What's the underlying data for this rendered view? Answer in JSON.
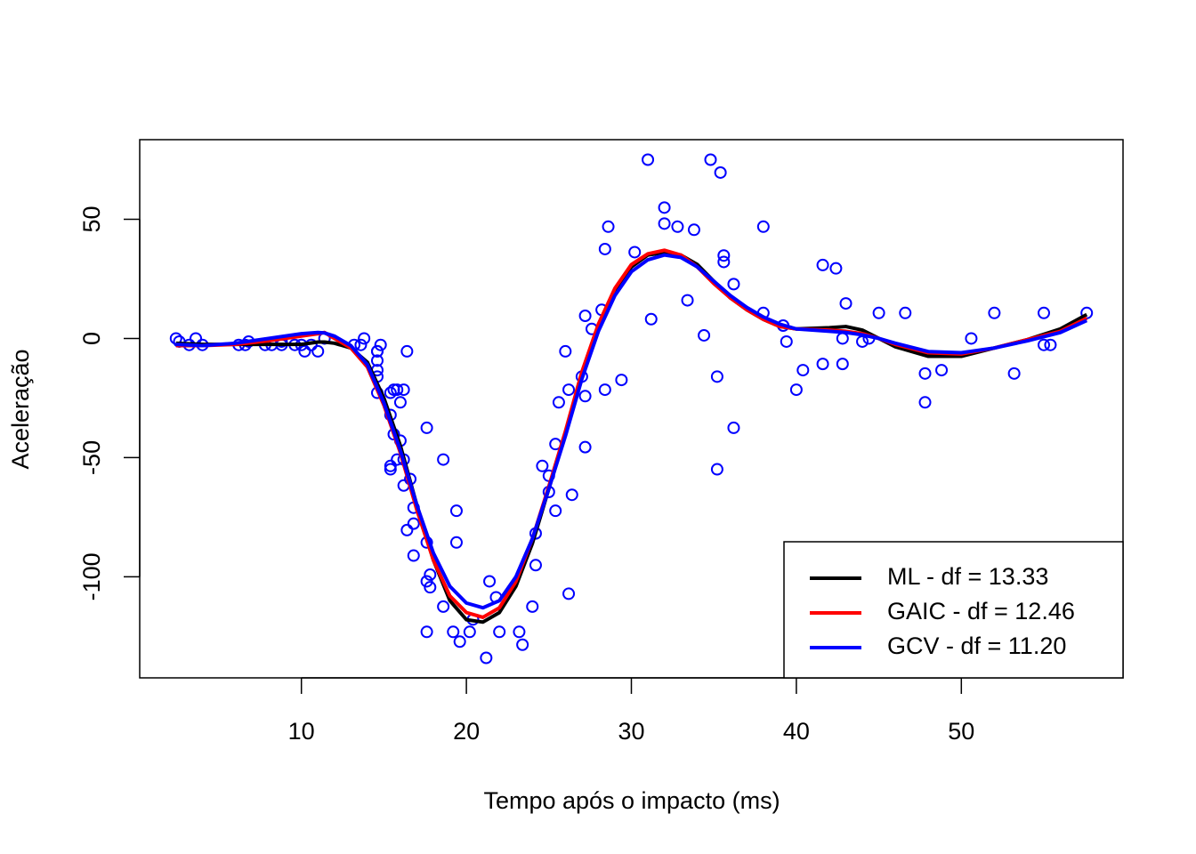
{
  "chart_data": {
    "type": "scatter",
    "x_label": "Tempo após o impacto (ms)",
    "y_label": "Aceleração",
    "xlim": [
      0.2,
      59.8
    ],
    "ylim": [
      -142.4,
      83.4
    ],
    "xticks": [
      10,
      20,
      30,
      40,
      50
    ],
    "yticks": [
      -100,
      -50,
      0,
      50
    ],
    "legend": "bottom-right",
    "points": {
      "color": "#0000ff",
      "x": [
        2.4,
        2.6,
        3.2,
        3.6,
        4.0,
        6.2,
        6.6,
        6.8,
        7.8,
        8.2,
        8.8,
        8.8,
        9.6,
        10.0,
        10.2,
        10.6,
        11.0,
        11.4,
        13.2,
        13.6,
        13.8,
        14.6,
        14.6,
        14.6,
        14.6,
        14.6,
        14.6,
        14.8,
        15.4,
        15.4,
        15.4,
        15.4,
        15.6,
        15.6,
        15.8,
        15.8,
        16.0,
        16.0,
        16.2,
        16.2,
        16.2,
        16.4,
        16.4,
        16.6,
        16.8,
        16.8,
        16.8,
        17.6,
        17.6,
        17.6,
        17.6,
        17.8,
        17.8,
        18.6,
        18.6,
        19.2,
        19.4,
        19.4,
        19.6,
        20.2,
        20.4,
        21.2,
        21.4,
        21.8,
        22.0,
        23.2,
        23.4,
        24.0,
        24.2,
        24.2,
        24.6,
        25.0,
        25.0,
        25.4,
        25.4,
        25.6,
        26.0,
        26.2,
        26.2,
        26.4,
        27.0,
        27.2,
        27.2,
        27.2,
        27.6,
        28.2,
        28.4,
        28.4,
        28.6,
        29.4,
        30.2,
        31.0,
        31.2,
        32.0,
        32.0,
        32.8,
        33.4,
        33.8,
        34.4,
        34.8,
        35.2,
        35.2,
        35.4,
        35.6,
        35.6,
        36.2,
        36.2,
        38.0,
        38.0,
        39.2,
        39.4,
        40.0,
        40.4,
        41.6,
        41.6,
        42.4,
        42.8,
        42.8,
        43.0,
        44.0,
        44.4,
        45.0,
        46.6,
        47.8,
        47.8,
        48.8,
        50.6,
        52.0,
        53.2,
        55.0,
        55.0,
        55.4,
        57.6
      ],
      "y": [
        0.0,
        -1.3,
        -2.7,
        0.0,
        -2.7,
        -2.7,
        -2.7,
        -1.3,
        -2.7,
        -2.7,
        -1.3,
        -2.7,
        -2.7,
        -2.7,
        -5.4,
        -2.7,
        -5.4,
        0.0,
        -2.7,
        -2.7,
        0.0,
        -13.3,
        -5.4,
        -5.4,
        -9.3,
        -16.0,
        -22.8,
        -2.7,
        -22.8,
        -32.1,
        -53.5,
        -54.9,
        -40.2,
        -21.5,
        -21.5,
        -50.8,
        -42.9,
        -26.8,
        -21.5,
        -50.8,
        -61.7,
        -5.4,
        -80.4,
        -59.0,
        -71.0,
        -91.1,
        -77.7,
        -37.5,
        -85.6,
        -123.1,
        -101.9,
        -99.1,
        -104.4,
        -112.5,
        -50.8,
        -123.1,
        -85.6,
        -72.3,
        -127.2,
        -123.1,
        -117.9,
        -134.0,
        -101.9,
        -108.6,
        -123.1,
        -123.1,
        -128.5,
        -112.5,
        -95.1,
        -81.8,
        -53.5,
        -64.4,
        -57.6,
        -72.3,
        -44.3,
        -26.8,
        -5.4,
        -107.1,
        -21.5,
        -65.6,
        -16.0,
        -45.6,
        -24.2,
        9.5,
        4.0,
        12.0,
        -21.5,
        37.5,
        46.9,
        -17.4,
        36.2,
        75.0,
        8.1,
        54.9,
        48.2,
        46.9,
        16.0,
        45.6,
        1.3,
        75.0,
        -16.0,
        -54.9,
        69.6,
        34.8,
        32.1,
        -37.5,
        22.8,
        46.9,
        10.7,
        5.4,
        -1.3,
        -21.5,
        -13.3,
        30.8,
        -10.7,
        29.4,
        0.0,
        -10.7,
        14.7,
        -1.3,
        0.0,
        10.7,
        10.7,
        -26.8,
        -14.7,
        -13.3,
        0.0,
        10.7,
        -14.7,
        -2.7,
        10.7,
        -2.7,
        10.7
      ]
    },
    "smooth_x": [
      2.4,
      4,
      6,
      8,
      10,
      11,
      11.4,
      12,
      13,
      14,
      15,
      16,
      17,
      18,
      19,
      20,
      21,
      22,
      23,
      24,
      25,
      26,
      27,
      28,
      29,
      30,
      31,
      32,
      33,
      34,
      35,
      36,
      37,
      38,
      39,
      40,
      42,
      43,
      44,
      45,
      46,
      48,
      50,
      52,
      54,
      56,
      57.6
    ],
    "series": [
      {
        "name": "ML - df = 13.33",
        "color": "#000000",
        "values": [
          -2,
          -2.5,
          -2.5,
          -2.5,
          -2.5,
          -1.5,
          -1.5,
          -2,
          -4,
          -10,
          -25,
          -45,
          -70,
          -93,
          -110,
          -118,
          -119,
          -115,
          -104,
          -86,
          -63,
          -40,
          -15,
          5,
          20,
          30,
          35,
          36,
          35,
          31,
          24,
          17,
          12,
          8,
          5,
          4,
          4.5,
          5,
          3.5,
          0,
          -3.5,
          -7.5,
          -7.5,
          -4,
          -0.5,
          4,
          10
        ]
      },
      {
        "name": "GAIC - df = 12.46",
        "color": "#ff0000",
        "values": [
          -3,
          -3,
          -2.5,
          -1,
          1,
          2,
          2.5,
          0,
          -4,
          -12,
          -28,
          -48,
          -72,
          -93,
          -108,
          -115,
          -117,
          -113,
          -102,
          -84,
          -62,
          -39,
          -14,
          6,
          21,
          31,
          35.5,
          37,
          35,
          30,
          23,
          17,
          12,
          8,
          5,
          4,
          3.5,
          3,
          2,
          0,
          -2.5,
          -6,
          -6.5,
          -4,
          -0.5,
          3,
          8.5
        ]
      },
      {
        "name": "GCV - df = 11.20",
        "color": "#0000ff",
        "values": [
          -2.5,
          -3,
          -2,
          0,
          2,
          2.5,
          2.3,
          1,
          -3,
          -11,
          -27,
          -47,
          -70,
          -90,
          -104,
          -111,
          -113,
          -110,
          -100,
          -84,
          -63,
          -41,
          -17,
          3,
          18,
          28,
          33,
          35,
          34,
          30,
          24,
          18,
          13,
          9,
          6,
          4,
          3,
          2.5,
          1.5,
          0,
          -2,
          -5.5,
          -6,
          -4,
          -1,
          2.5,
          7.5
        ]
      }
    ]
  }
}
